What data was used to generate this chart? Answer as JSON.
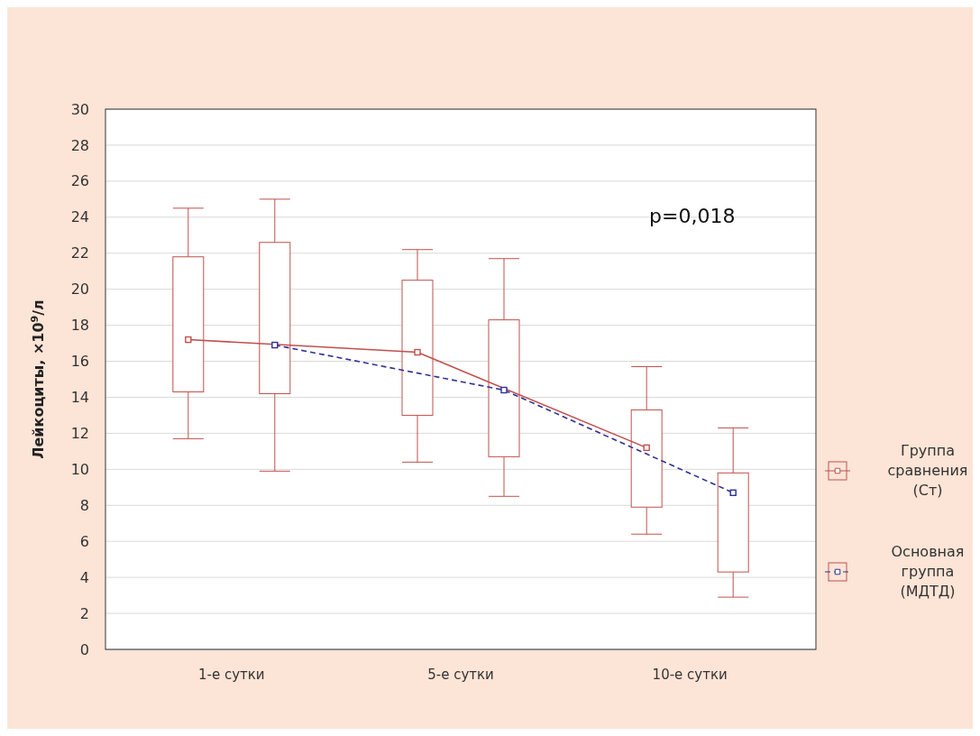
{
  "chart_data": {
    "type": "box",
    "ylabel": "Лейкоциты, ×10$^{9}$/л",
    "categories": [
      "1-е сутки",
      "5-е сутки",
      "10-е сутки"
    ],
    "ylim": [
      0,
      30
    ],
    "yticks": [
      0,
      2,
      4,
      6,
      8,
      10,
      12,
      14,
      16,
      18,
      20,
      22,
      24,
      26,
      28,
      30
    ],
    "grid": "y",
    "legend": "right",
    "marker": "square",
    "series": [
      {
        "color": "#c0504d",
        "boxes": [
          {
            "low": 11.7,
            "q1": 14.3,
            "q3": 21.8,
            "high": 24.5
          },
          {
            "low": 10.4,
            "q1": 13.0,
            "q3": 20.5,
            "high": 22.2
          },
          {
            "low": 6.4,
            "q1": 7.9,
            "q3": 13.3,
            "high": 15.7
          }
        ]
      },
      {
        "color": "#c0504d",
        "boxes": [
          {
            "low": 9.9,
            "q1": 14.2,
            "q3": 22.6,
            "high": 25.0
          },
          {
            "low": 8.5,
            "q1": 10.7,
            "q3": 18.3,
            "high": 21.7
          },
          {
            "low": 2.9,
            "q1": 4.3,
            "q3": 9.8,
            "high": 12.3
          }
        ]
      },
      {
        "type": "line",
        "name": "Группа сравнения (Ст)",
        "color": "#c0504d",
        "line_style": "solid",
        "values": [
          17.2,
          16.5,
          11.2
        ]
      },
      {
        "type": "line",
        "name": "Основная группа (МДТД)",
        "color": "#2e3192",
        "line_style": "dashed",
        "values": [
          16.9,
          14.4,
          8.7
        ]
      }
    ],
    "annotations": [
      "p=0,018"
    ]
  }
}
